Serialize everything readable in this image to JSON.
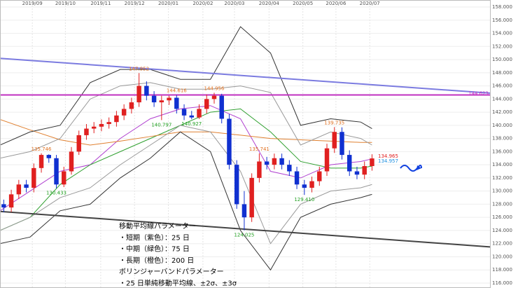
{
  "chart_data": {
    "type": "candlestick",
    "xlim": [
      0,
      65.2
    ],
    "xticks": [
      {
        "value": 4.3,
        "label": "2019/09"
      },
      {
        "value": 8.7,
        "label": "2019/10"
      },
      {
        "value": 13.4,
        "label": "2019/11"
      },
      {
        "value": 17.9,
        "label": "2019/12"
      },
      {
        "value": 22.4,
        "label": "2020/01"
      },
      {
        "value": 27.0,
        "label": "2020/02"
      },
      {
        "value": 31.2,
        "label": "2020/03"
      },
      {
        "value": 35.8,
        "label": "2020/04"
      },
      {
        "value": 40.3,
        "label": "2020/05"
      },
      {
        "value": 44.7,
        "label": "2020/06"
      },
      {
        "value": 49.2,
        "label": "2020/07"
      }
    ],
    "ylim": [
      115.25,
      159.07
    ],
    "yticks": [
      {
        "value": 116,
        "label": "116.000"
      },
      {
        "value": 118,
        "label": "118.000"
      },
      {
        "value": 120,
        "label": "120.000"
      },
      {
        "value": 122,
        "label": "122.000"
      },
      {
        "value": 124,
        "label": "124.000"
      },
      {
        "value": 126,
        "label": "126.000"
      },
      {
        "value": 128,
        "label": "128.000"
      },
      {
        "value": 130,
        "label": "130.000"
      },
      {
        "value": 132,
        "label": "132.000"
      },
      {
        "value": 134,
        "label": "134.000"
      },
      {
        "value": 136,
        "label": "136.000"
      },
      {
        "value": 138,
        "label": "138.000"
      },
      {
        "value": 140,
        "label": "140.000"
      },
      {
        "value": 142,
        "label": "142.000"
      },
      {
        "value": 144,
        "label": "144.000"
      },
      {
        "value": 146,
        "label": "146.000"
      },
      {
        "value": 148,
        "label": "148.000"
      },
      {
        "value": 150,
        "label": "150.000"
      },
      {
        "value": 152,
        "label": "152.000"
      },
      {
        "value": 154,
        "label": "154.000"
      },
      {
        "value": 156,
        "label": "156.000"
      },
      {
        "value": 158,
        "label": "158.000"
      }
    ],
    "grid": true,
    "up_color": "#e02020",
    "down_color": "#1030d0",
    "candles": {
      "open": [
        128,
        127.5,
        129.5,
        131,
        130.5,
        133.5,
        135.5,
        135,
        131,
        133,
        136,
        138.5,
        139.5,
        139.8,
        140.2,
        140.5,
        141.5,
        142.5,
        143.5,
        146,
        144.5,
        143.5,
        143.8,
        144.2,
        142.5,
        141.5,
        141.2,
        142.5,
        144,
        144.5,
        141,
        134,
        128,
        126,
        132,
        134.5,
        134,
        135,
        134,
        133,
        131,
        130.5,
        131.5,
        133,
        136.5,
        139,
        135.5,
        133,
        132.5,
        133.8
      ],
      "high": [
        128.7,
        130.2,
        131.7,
        131.7,
        134.2,
        135.746,
        135.6,
        135.5,
        133.7,
        136.7,
        139.2,
        140.2,
        140.5,
        140.9,
        141.2,
        142.2,
        143.2,
        144.2,
        147.952,
        146.7,
        145.2,
        144.5,
        144.5,
        144.616,
        143.2,
        142.2,
        143.2,
        144.7,
        144.956,
        144.8,
        141.7,
        134.7,
        130,
        132.7,
        135.741,
        135.2,
        135.7,
        135.7,
        134.7,
        133.7,
        131.7,
        132.2,
        133.7,
        137.2,
        139.735,
        139.7,
        136.2,
        133.7,
        134.5,
        135.6
      ],
      "low": [
        126.8,
        126.8,
        128.8,
        129.8,
        129.8,
        132.8,
        134.3,
        130.433,
        130.6,
        132.5,
        135.5,
        137.8,
        138.8,
        139.1,
        139.5,
        139.8,
        140.8,
        141.8,
        142.8,
        143.8,
        142.8,
        140.797,
        143.1,
        141.8,
        140.8,
        140.927,
        140.97,
        141.8,
        143.3,
        140.3,
        133.3,
        127.3,
        124.025,
        125.3,
        131.3,
        133.3,
        133.3,
        133.3,
        132.3,
        130.3,
        129.41,
        129.8,
        130.8,
        132.3,
        135.8,
        134.8,
        132.3,
        131.8,
        131.8,
        133.1
      ],
      "close": [
        127.5,
        129.5,
        131,
        130.5,
        133.5,
        135.5,
        135,
        131,
        133,
        136,
        138.5,
        139.5,
        139.8,
        140.2,
        140.5,
        141.5,
        142.5,
        143.5,
        146,
        144.5,
        143.5,
        143.8,
        144.2,
        142.5,
        141.5,
        141.2,
        142.5,
        144,
        144.5,
        141,
        134,
        128,
        126,
        132,
        134.5,
        134,
        135,
        134,
        133,
        131,
        130.5,
        131.5,
        133,
        136.5,
        139,
        135.5,
        133,
        132.5,
        133.8,
        134.965
      ]
    },
    "series": [
      {
        "color": "#b040d0",
        "x": [
          0,
          4,
          8,
          12,
          16,
          20,
          24,
          28,
          32,
          36,
          40,
          44,
          48,
          49.5
        ],
        "values": [
          127,
          130,
          133,
          134,
          138,
          141,
          142.5,
          143,
          141,
          133,
          132,
          134,
          134.5,
          134.9
        ]
      },
      {
        "color": "#30a030",
        "x": [
          0,
          4,
          8,
          12,
          16,
          20,
          24,
          28,
          32,
          36,
          40,
          44,
          48,
          49.5
        ],
        "values": [
          124,
          126,
          131,
          134,
          136,
          138,
          140,
          142,
          142.5,
          139,
          134.5,
          133.5,
          133.5,
          133.8
        ]
      },
      {
        "color": "#e08030",
        "x": [
          0,
          4,
          8,
          12,
          16,
          20,
          24,
          28,
          32,
          36,
          40,
          44,
          48,
          49.5
        ],
        "values": [
          140.9,
          139.3,
          137.8,
          137,
          137.6,
          138.3,
          139,
          139,
          138.5,
          138,
          137.8,
          137.6,
          137.4,
          137.4
        ]
      },
      {
        "color": "#999999",
        "x": [
          0,
          4,
          8,
          12,
          16,
          20,
          24,
          28,
          32,
          36,
          40,
          44,
          48,
          49.5
        ],
        "values": [
          135,
          136,
          138,
          144,
          146,
          146.5,
          145.5,
          145.5,
          146,
          145,
          137,
          139,
          138,
          137
        ]
      },
      {
        "color": "#999999",
        "x": [
          0,
          4,
          8,
          12,
          16,
          20,
          24,
          28,
          32,
          36,
          40,
          44,
          48,
          49.5
        ],
        "values": [
          124,
          126,
          129,
          130.5,
          134,
          137,
          140,
          139,
          133,
          122,
          128,
          130,
          130.5,
          131
        ]
      },
      {
        "color": "#333333",
        "x": [
          0,
          4,
          8,
          12,
          16,
          20,
          24,
          28,
          32,
          36,
          40,
          44,
          48,
          49.5
        ],
        "values": [
          137,
          139,
          140,
          146.5,
          148.5,
          148.5,
          147,
          147,
          155,
          151,
          140,
          141,
          140.5,
          139.5
        ]
      },
      {
        "color": "#333333",
        "x": [
          0,
          4,
          8,
          12,
          16,
          20,
          24,
          28,
          32,
          36,
          40,
          44,
          48,
          49.5
        ],
        "values": [
          122,
          123,
          127,
          128,
          132,
          135,
          139,
          136,
          124,
          118,
          126,
          128,
          129,
          129.5
        ]
      }
    ],
    "trendlines": [
      {
        "color": "#7b7be0",
        "x": [
          0,
          65.2
        ],
        "values": [
          150.2,
          144.9
        ]
      },
      {
        "color": "#444444",
        "x": [
          0,
          65.2
        ],
        "values": [
          126.9,
          121.5
        ]
      }
    ],
    "hlines": [
      {
        "value": 144.623,
        "label": "144.623",
        "color": "#c030c0"
      }
    ],
    "annotations": [
      {
        "x": 5,
        "value": 135.746,
        "color": "#e07020",
        "side": "above"
      },
      {
        "x": 7,
        "value": 130.433,
        "color": "#20a020",
        "side": "below"
      },
      {
        "x": 18,
        "value": 147.952,
        "color": "#e07020",
        "side": "above"
      },
      {
        "x": 21,
        "value": 140.797,
        "color": "#20a020",
        "side": "below"
      },
      {
        "x": 23,
        "value": 144.616,
        "color": "#e07020",
        "side": "above"
      },
      {
        "x": 25,
        "value": 140.927,
        "color": "#20a020",
        "side": "below"
      },
      {
        "x": 28,
        "value": 144.956,
        "color": "#e07020",
        "side": "above"
      },
      {
        "x": 32,
        "value": 124.025,
        "color": "#20a020",
        "side": "below"
      },
      {
        "x": 34,
        "value": 135.741,
        "color": "#e07020",
        "side": "above"
      },
      {
        "x": 40,
        "value": 129.41,
        "label": "129.410",
        "color": "#20a020",
        "side": "below"
      },
      {
        "x": 44,
        "value": 139.735,
        "color": "#e07020",
        "side": "above"
      }
    ],
    "last_labels": [
      {
        "value": 134.965,
        "color": "#e02020"
      },
      {
        "value": 134.957,
        "color": "#2090e0"
      }
    ],
    "notes": [
      "移動平均線パラメーター",
      "・短期（紫色）：25 日",
      "・中期（緑色）：75 日",
      "・長期（橙色）：200 日",
      "ボリンジャーバンドパラメーター",
      "・25 日単純移動平均線、±2σ、±3σ"
    ]
  }
}
